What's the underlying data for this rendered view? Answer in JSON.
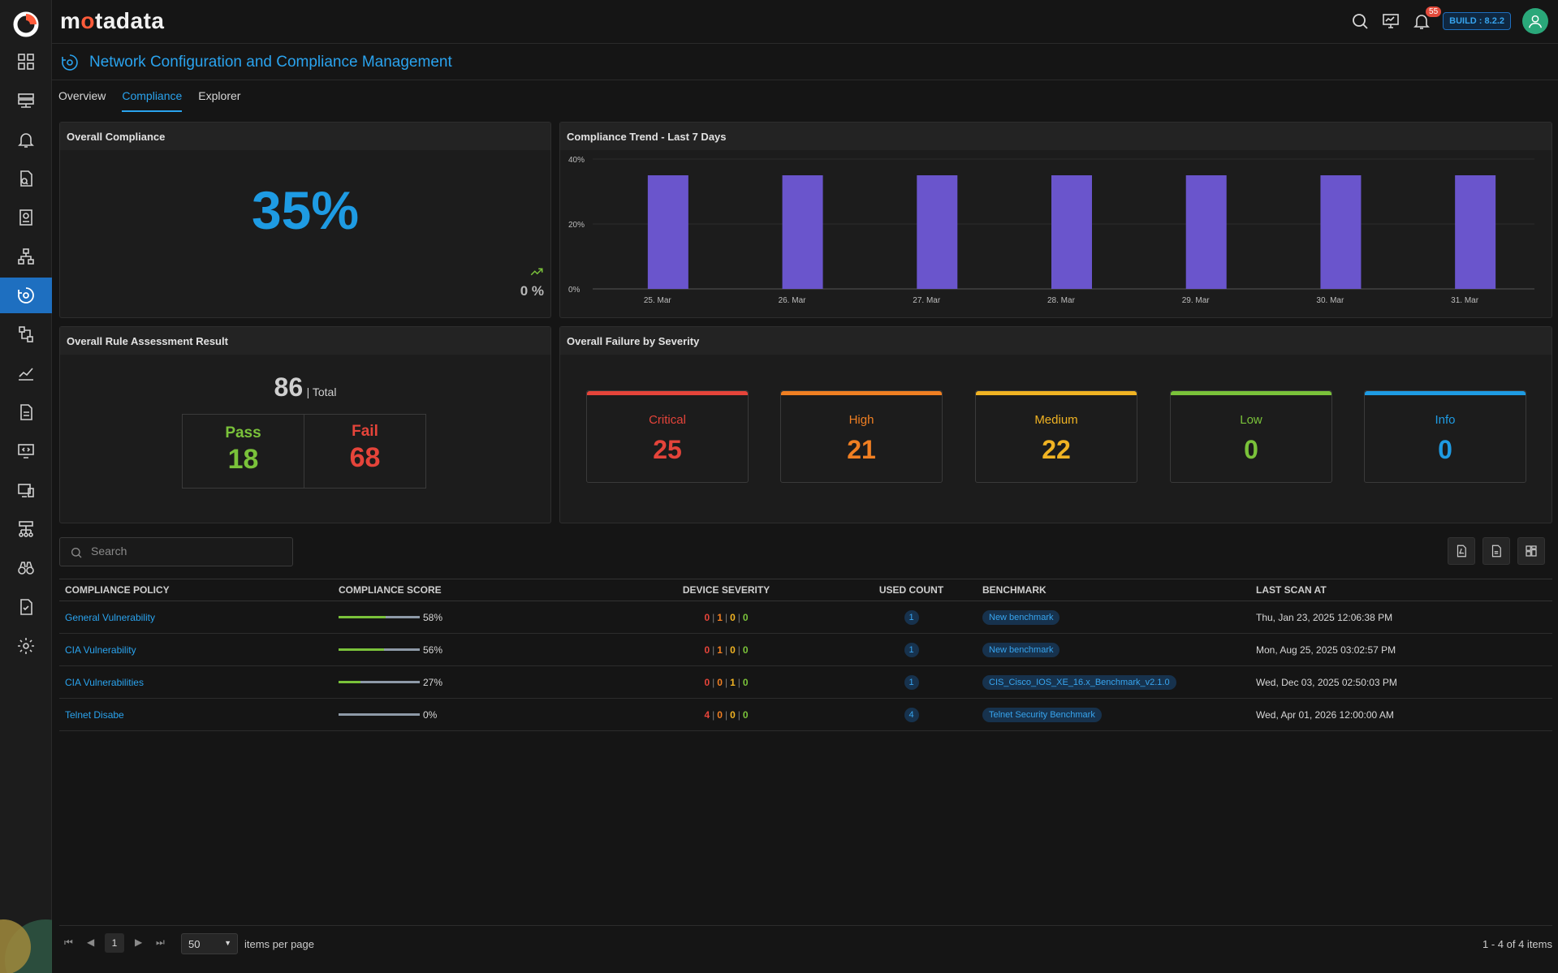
{
  "brand": {
    "name_pre": "m",
    "name_dot": "o",
    "name_post": "tadata"
  },
  "header": {
    "build": "BUILD : 8.2.2",
    "notification_count": "55"
  },
  "page": {
    "title": "Network Configuration and Compliance Management"
  },
  "tabs": [
    "Overview",
    "Compliance",
    "Explorer"
  ],
  "active_tab": "Compliance",
  "overall_compliance": {
    "title": "Overall Compliance",
    "value": "35%",
    "trend_value": "0 %"
  },
  "trend_chart": {
    "title": "Compliance Trend - Last 7 Days",
    "chart_data": {
      "type": "bar",
      "categories": [
        "25. Mar",
        "26. Mar",
        "27. Mar",
        "28. Mar",
        "29. Mar",
        "30. Mar",
        "31. Mar"
      ],
      "values": [
        35,
        35,
        35,
        35,
        35,
        35,
        35
      ],
      "y_ticks": [
        "0%",
        "20%",
        "40%"
      ],
      "ylim": [
        0,
        40
      ],
      "bar_color": "#6a55cc",
      "grid": true
    }
  },
  "rule_assessment": {
    "title": "Overall Rule Assessment Result",
    "total": "86",
    "total_label": "| Total",
    "pass_label": "Pass",
    "pass_value": "18",
    "fail_label": "Fail",
    "fail_value": "68"
  },
  "failure_severity": {
    "title": "Overall Failure by Severity",
    "cards": [
      {
        "label": "Critical",
        "value": "25",
        "color": "#e5443a"
      },
      {
        "label": "High",
        "value": "21",
        "color": "#f07f22"
      },
      {
        "label": "Medium",
        "value": "22",
        "color": "#f0b323"
      },
      {
        "label": "Low",
        "value": "0",
        "color": "#7ac23a"
      },
      {
        "label": "Info",
        "value": "0",
        "color": "#1e9be3"
      }
    ]
  },
  "search": {
    "placeholder": "Search"
  },
  "table": {
    "headers": [
      "COMPLIANCE POLICY",
      "COMPLIANCE SCORE",
      "DEVICE SEVERITY",
      "USED COUNT",
      "BENCHMARK",
      "LAST SCAN AT"
    ],
    "rows": [
      {
        "policy": "General Vulnerability",
        "score": 58,
        "score_label": "58%",
        "sev": [
          "0",
          "1",
          "0",
          "0"
        ],
        "count": "1",
        "benchmark": "New benchmark",
        "last_scan": "Thu, Jan 23, 2025 12:06:38 PM"
      },
      {
        "policy": "CIA Vulnerability",
        "score": 56,
        "score_label": "56%",
        "sev": [
          "0",
          "1",
          "0",
          "0"
        ],
        "count": "1",
        "benchmark": "New benchmark",
        "last_scan": "Mon, Aug 25, 2025 03:02:57 PM"
      },
      {
        "policy": "CIA Vulnerabilities",
        "score": 27,
        "score_label": "27%",
        "sev": [
          "0",
          "0",
          "1",
          "0"
        ],
        "count": "1",
        "benchmark": "CIS_Cisco_IOS_XE_16.x_Benchmark_v2.1.0",
        "last_scan": "Wed, Dec 03, 2025 02:50:03 PM"
      },
      {
        "policy": "Telnet Disabe",
        "score": 0,
        "score_label": "0%",
        "sev": [
          "4",
          "0",
          "0",
          "0"
        ],
        "count": "4",
        "benchmark": "Telnet Security Benchmark",
        "last_scan": "Wed, Apr 01, 2026 12:00:00 AM"
      }
    ],
    "severity_colors": [
      "#e5443a",
      "#f07f22",
      "#f0b323",
      "#7ac23a"
    ]
  },
  "pagination": {
    "page": "1",
    "page_size": "50",
    "items_label": "items per page",
    "range": "1 - 4 of 4 items"
  }
}
